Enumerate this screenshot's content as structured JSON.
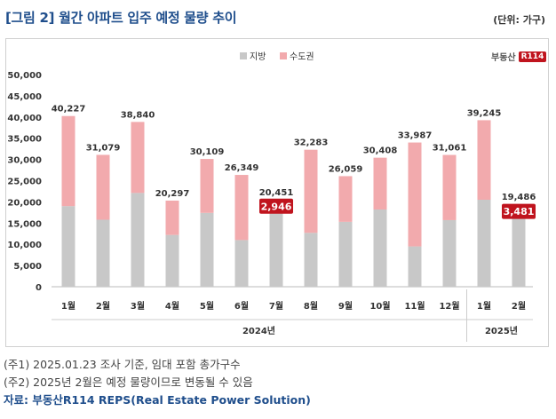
{
  "header": {
    "title": "[그림 2] 월간 아파트 입주 예정 물량 추이",
    "unit": "(단위: 가구)"
  },
  "brand": {
    "name": "부동산",
    "mark": "R114"
  },
  "colors": {
    "local": "#c8c8c8",
    "capital": "#f2aaad",
    "highlight": "#c0141e"
  },
  "chart_data": {
    "type": "bar",
    "stacked": true,
    "categories": [
      "1월",
      "2월",
      "3월",
      "4월",
      "5월",
      "6월",
      "7월",
      "8월",
      "9월",
      "10월",
      "11월",
      "12월",
      "1월",
      "2월"
    ],
    "groups": [
      {
        "label": "2024년",
        "start": 0,
        "end": 11
      },
      {
        "label": "2025년",
        "start": 12,
        "end": 13
      }
    ],
    "series": [
      {
        "name": "지방",
        "values": [
          19000,
          15800,
          22100,
          12200,
          17400,
          11000,
          17505,
          12700,
          15300,
          18200,
          9500,
          15700,
          20500,
          16005
        ]
      },
      {
        "name": "수도권",
        "values": [
          21227,
          15279,
          16740,
          8097,
          12709,
          15349,
          2946,
          19583,
          10759,
          12208,
          24487,
          15361,
          18745,
          3481
        ]
      }
    ],
    "totals": [
      "40,227",
      "31,079",
      "38,840",
      "20,297",
      "30,109",
      "26,349",
      "20,451",
      "32,283",
      "26,059",
      "30,408",
      "33,987",
      "31,061",
      "39,245",
      "19,486"
    ],
    "highlights": [
      {
        "index": 6,
        "label": "2,946"
      },
      {
        "index": 13,
        "label": "3,481"
      }
    ],
    "yticks": [
      "0",
      "5,000",
      "10,000",
      "15,000",
      "20,000",
      "25,000",
      "30,000",
      "35,000",
      "40,000",
      "45,000",
      "50,000"
    ],
    "ylim": [
      0,
      50000
    ],
    "legend": "top-center",
    "grid": false
  },
  "notes": [
    "(주1) 2025.01.23 조사 기준, 임대 포함 총가구수",
    "(주2) 2025년 2월은 예정 물량이므로 변동될 수 있음"
  ],
  "source": "자료: 부동산R114 REPS(Real Estate Power Solution)"
}
